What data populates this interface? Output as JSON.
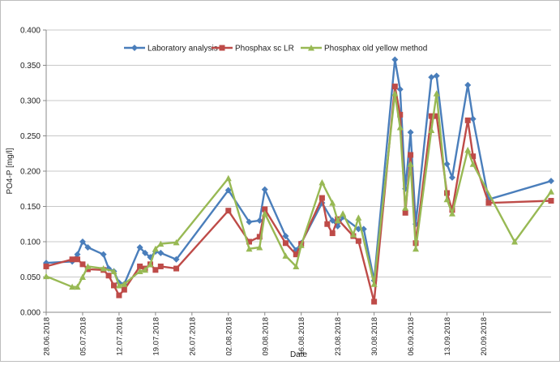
{
  "chart_data": {
    "type": "line",
    "xlabel": "Date",
    "ylabel": "PO4-P [mg/l]",
    "ylim": [
      0,
      0.4
    ],
    "yticks": [
      "0.000",
      "0.050",
      "0.100",
      "0.150",
      "0.200",
      "0.250",
      "0.300",
      "0.350",
      "0.400"
    ],
    "x_range": [
      "2018-06-28",
      "2018-10-03"
    ],
    "x_ticks": [
      {
        "date": "2018-06-28",
        "label": "28.06.2018"
      },
      {
        "date": "2018-07-05",
        "label": "05.07.2018"
      },
      {
        "date": "2018-07-12",
        "label": "12.07.2018"
      },
      {
        "date": "2018-07-19",
        "label": "19.07.2018"
      },
      {
        "date": "2018-07-26",
        "label": "26.07.2018"
      },
      {
        "date": "2018-08-02",
        "label": "02.08.2018"
      },
      {
        "date": "2018-08-09",
        "label": "09.08.2018"
      },
      {
        "date": "2018-08-16",
        "label": "16.08.2018"
      },
      {
        "date": "2018-08-23",
        "label": "23.08.2018"
      },
      {
        "date": "2018-08-30",
        "label": "30.08.2018"
      },
      {
        "date": "2018-09-06",
        "label": "06.09.2018"
      },
      {
        "date": "2018-09-13",
        "label": "13.09.2018"
      },
      {
        "date": "2018-09-20",
        "label": "20.09.2018"
      }
    ],
    "grid": "horizontal",
    "legend_position": "top-left",
    "series": [
      {
        "name": "Laboratory analysis",
        "color": "#4a7ebb",
        "marker": "diamond",
        "x": [
          "2018-06-28",
          "2018-07-03",
          "2018-07-04",
          "2018-07-05",
          "2018-07-06",
          "2018-07-09",
          "2018-07-10",
          "2018-07-11",
          "2018-07-12",
          "2018-07-13",
          "2018-07-16",
          "2018-07-17",
          "2018-07-18",
          "2018-07-19",
          "2018-07-20",
          "2018-07-23",
          "2018-08-02",
          "2018-08-06",
          "2018-08-08",
          "2018-08-09",
          "2018-08-13",
          "2018-08-15",
          "2018-08-16",
          "2018-08-20",
          "2018-08-22",
          "2018-08-23",
          "2018-08-24",
          "2018-08-27",
          "2018-08-28",
          "2018-08-30",
          "2018-09-03",
          "2018-09-04",
          "2018-09-05",
          "2018-09-06",
          "2018-09-07",
          "2018-09-10",
          "2018-09-11",
          "2018-09-13",
          "2018-09-14",
          "2018-09-17",
          "2018-09-18",
          "2018-09-21",
          "2018-10-03"
        ],
        "values": [
          0.07,
          0.072,
          0.082,
          0.1,
          0.092,
          0.082,
          0.062,
          0.058,
          0.042,
          0.04,
          0.092,
          0.084,
          0.078,
          0.086,
          0.084,
          0.075,
          0.173,
          0.128,
          0.13,
          0.174,
          0.108,
          0.088,
          0.098,
          0.155,
          0.13,
          0.122,
          0.135,
          0.118,
          0.118,
          0.045,
          0.358,
          0.316,
          0.175,
          0.255,
          0.125,
          0.333,
          0.335,
          0.21,
          0.191,
          0.322,
          0.274,
          0.16,
          0.186
        ]
      },
      {
        "name": "Phosphax sc LR",
        "color": "#be4b48",
        "marker": "square",
        "x": [
          "2018-06-28",
          "2018-07-03",
          "2018-07-04",
          "2018-07-05",
          "2018-07-06",
          "2018-07-09",
          "2018-07-10",
          "2018-07-11",
          "2018-07-12",
          "2018-07-13",
          "2018-07-16",
          "2018-07-17",
          "2018-07-18",
          "2018-07-19",
          "2018-07-20",
          "2018-07-23",
          "2018-08-02",
          "2018-08-06",
          "2018-08-08",
          "2018-08-09",
          "2018-08-13",
          "2018-08-15",
          "2018-08-16",
          "2018-08-20",
          "2018-08-21",
          "2018-08-22",
          "2018-08-23",
          "2018-08-26",
          "2018-08-27",
          "2018-08-30",
          "2018-09-03",
          "2018-09-04",
          "2018-09-05",
          "2018-09-06",
          "2018-09-07",
          "2018-09-10",
          "2018-09-11",
          "2018-09-13",
          "2018-09-14",
          "2018-09-17",
          "2018-09-18",
          "2018-09-21",
          "2018-10-03"
        ],
        "values": [
          0.065,
          0.075,
          0.075,
          0.068,
          0.061,
          0.06,
          0.052,
          0.038,
          0.024,
          0.032,
          0.065,
          0.062,
          0.068,
          0.06,
          0.065,
          0.062,
          0.144,
          0.1,
          0.107,
          0.146,
          0.098,
          0.082,
          0.097,
          0.162,
          0.125,
          0.112,
          0.132,
          0.108,
          0.101,
          0.015,
          0.32,
          0.28,
          0.141,
          0.223,
          0.098,
          0.278,
          0.278,
          0.169,
          0.145,
          0.272,
          0.221,
          0.155,
          0.158
        ]
      },
      {
        "name": "Phosphax old yellow method",
        "color": "#98b954",
        "marker": "triangle",
        "x": [
          "2018-06-28",
          "2018-07-03",
          "2018-07-04",
          "2018-07-05",
          "2018-07-06",
          "2018-07-09",
          "2018-07-11",
          "2018-07-12",
          "2018-07-13",
          "2018-07-16",
          "2018-07-17",
          "2018-07-18",
          "2018-07-19",
          "2018-07-20",
          "2018-07-23",
          "2018-08-02",
          "2018-08-06",
          "2018-08-08",
          "2018-08-09",
          "2018-08-13",
          "2018-08-15",
          "2018-08-16",
          "2018-08-20",
          "2018-08-22",
          "2018-08-23",
          "2018-08-24",
          "2018-08-26",
          "2018-08-27",
          "2018-08-30",
          "2018-09-03",
          "2018-09-04",
          "2018-09-05",
          "2018-09-06",
          "2018-09-07",
          "2018-09-10",
          "2018-09-11",
          "2018-09-13",
          "2018-09-14",
          "2018-09-17",
          "2018-09-18",
          "2018-09-26",
          "2018-10-03"
        ],
        "values": [
          0.051,
          0.036,
          0.036,
          0.05,
          0.065,
          0.062,
          0.058,
          0.038,
          0.04,
          0.058,
          0.06,
          0.068,
          0.09,
          0.097,
          0.099,
          0.19,
          0.09,
          0.092,
          0.14,
          0.08,
          0.065,
          0.095,
          0.184,
          0.155,
          0.13,
          0.14,
          0.11,
          0.134,
          0.04,
          0.31,
          0.262,
          0.148,
          0.21,
          0.09,
          0.258,
          0.31,
          0.16,
          0.14,
          0.23,
          0.21,
          0.1,
          0.171
        ]
      }
    ]
  }
}
